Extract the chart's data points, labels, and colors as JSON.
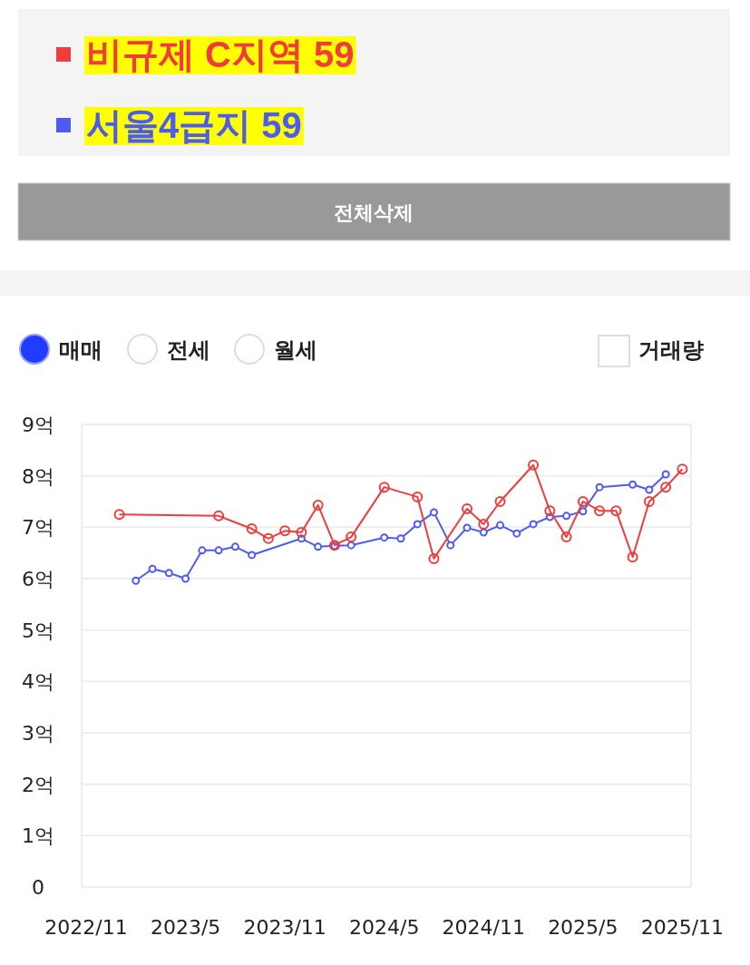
{
  "chart_data": {
    "type": "line",
    "series": [
      {
        "name": "비규제 C지역 59",
        "color": "#f03c3c",
        "x": [
          "2023-01",
          "2023-07",
          "2023-09",
          "2023-10",
          "2023-11",
          "2023-12",
          "2024-01",
          "2024-02",
          "2024-03",
          "2024-05",
          "2024-07",
          "2024-08",
          "2024-10",
          "2024-11",
          "2024-12",
          "2025-02",
          "2025-03",
          "2025-04",
          "2025-05",
          "2025-06",
          "2025-07",
          "2025-08",
          "2025-09",
          "2025-10",
          "2025-11"
        ],
        "values": [
          7.25,
          7.22,
          6.97,
          6.78,
          6.93,
          6.9,
          7.43,
          6.65,
          6.81,
          7.78,
          7.59,
          6.39,
          7.36,
          7.06,
          7.5,
          8.21,
          7.32,
          6.81,
          7.5,
          7.32,
          7.32,
          6.42,
          7.5,
          7.78,
          8.13
        ]
      },
      {
        "name": "서울4급지 59",
        "color": "#4d5cf0",
        "x": [
          "2023-02",
          "2023-03",
          "2023-04",
          "2023-05",
          "2023-06",
          "2023-07",
          "2023-08",
          "2023-09",
          "2023-12",
          "2024-01",
          "2024-02",
          "2024-03",
          "2024-05",
          "2024-06",
          "2024-07",
          "2024-08",
          "2024-09",
          "2024-10",
          "2024-11",
          "2024-12",
          "2025-01",
          "2025-02",
          "2025-03",
          "2025-04",
          "2025-05",
          "2025-06",
          "2025-08",
          "2025-09",
          "2025-10"
        ],
        "values": [
          5.96,
          6.19,
          6.11,
          6.0,
          6.55,
          6.55,
          6.62,
          6.46,
          6.78,
          6.62,
          6.64,
          6.65,
          6.8,
          6.78,
          7.06,
          7.29,
          6.65,
          6.99,
          6.9,
          7.04,
          6.88,
          7.06,
          7.2,
          7.22,
          7.31,
          7.78,
          7.83,
          7.73,
          8.03
        ]
      }
    ],
    "xlim": [
      "2022-10-23",
      "2025-11-17"
    ],
    "xticks": [
      {
        "value": "2022-11",
        "label": "2022/11"
      },
      {
        "value": "2023-05",
        "label": "2023/5"
      },
      {
        "value": "2023-11",
        "label": "2023/11"
      },
      {
        "value": "2024-05",
        "label": "2024/5"
      },
      {
        "value": "2024-11",
        "label": "2024/11"
      },
      {
        "value": "2025-05",
        "label": "2025/5"
      },
      {
        "value": "2025-11",
        "label": "2025/11"
      }
    ],
    "ylim": [
      0,
      9
    ],
    "yticks": [
      0,
      {
        "value": 1,
        "label": "1억"
      },
      {
        "value": 2,
        "label": "2억"
      },
      {
        "value": 3,
        "label": "3억"
      },
      {
        "value": 4,
        "label": "4억"
      },
      {
        "value": 5,
        "label": "5억"
      },
      {
        "value": 6,
        "label": "6억"
      },
      {
        "value": 7,
        "label": "7억"
      },
      {
        "value": 8,
        "label": "8억"
      },
      {
        "value": 9,
        "label": "9억"
      }
    ],
    "grid": "y",
    "legend": "top left",
    "marker": "circle",
    "line_style": "solid",
    "annotations": [
      "전체삭제",
      "매매",
      "전세",
      "월세",
      "거래량"
    ]
  }
}
